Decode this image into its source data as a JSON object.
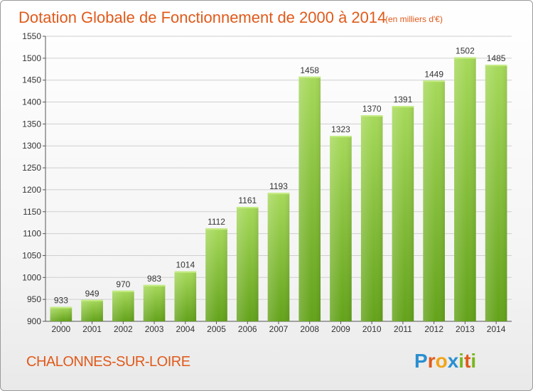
{
  "title": "Dotation Globale de Fonctionnement de 2000 à 2014",
  "unit_note": "(en milliers d'€)",
  "location": "CHALONNES-SUR-LOIRE",
  "logo": {
    "text": "Proxiti",
    "letters": [
      "P",
      "r",
      "o",
      "x",
      "i",
      "t",
      "i"
    ],
    "colors": [
      "#2a8fd0",
      "#e05a1b",
      "#f2a51a",
      "#2a8fd0",
      "#7ab51d",
      "#e05a1b",
      "#7ab51d"
    ]
  },
  "colors": {
    "title": "#e05a1b",
    "bar_top": "#a6d95a",
    "bar_bottom": "#63a21a",
    "grid": "#cfcfcf"
  },
  "chart_data": {
    "type": "bar",
    "title": "Dotation Globale de Fonctionnement de 2000 à 2014",
    "subtitle": "(en milliers d'€)",
    "categories": [
      "2000",
      "2001",
      "2002",
      "2003",
      "2004",
      "2005",
      "2006",
      "2007",
      "2008",
      "2009",
      "2010",
      "2011",
      "2012",
      "2013",
      "2014"
    ],
    "values": [
      933,
      949,
      970,
      983,
      1014,
      1112,
      1161,
      1193,
      1458,
      1323,
      1370,
      1391,
      1449,
      1502,
      1485
    ],
    "ylim": [
      900,
      1550
    ],
    "yticks": [
      900,
      950,
      1000,
      1050,
      1100,
      1150,
      1200,
      1250,
      1300,
      1350,
      1400,
      1450,
      1500,
      1550
    ],
    "grid": true,
    "xlabel": "",
    "ylabel": ""
  }
}
